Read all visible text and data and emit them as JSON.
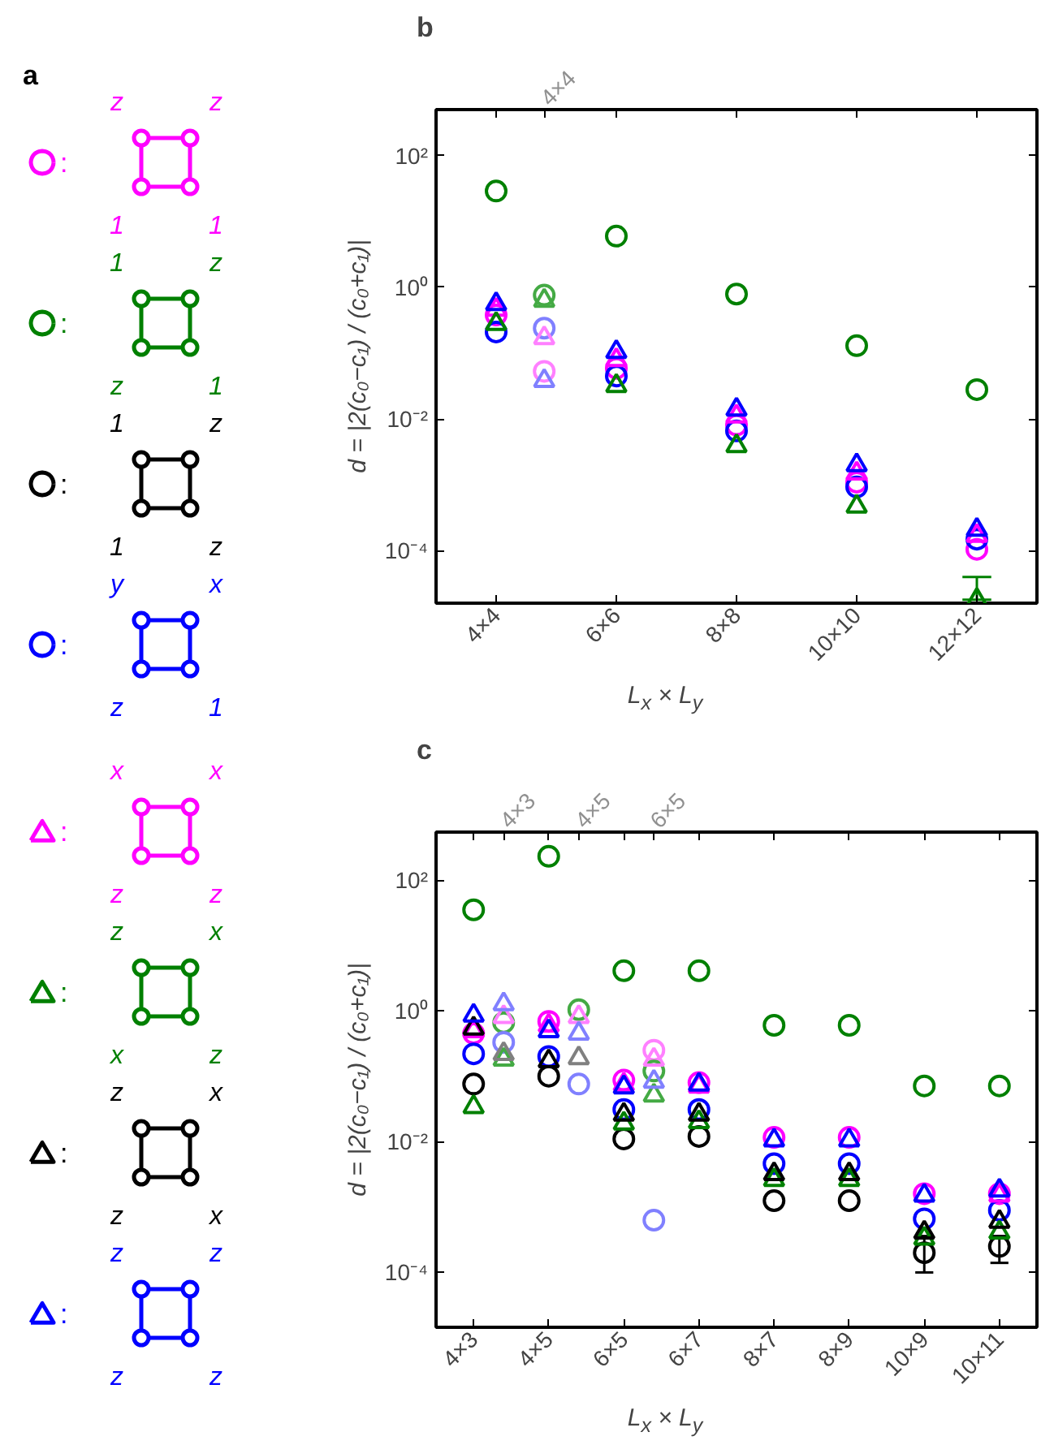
{
  "chart_data": [
    {
      "type": "other",
      "title": "a",
      "annotations": [
        ":",
        "z",
        "z",
        "1",
        "1",
        ":",
        "1",
        "z",
        "z",
        "1",
        ":",
        "1",
        "z",
        "1",
        "z",
        ":",
        "y",
        "x",
        "z",
        "1",
        ":",
        "x",
        "x",
        "z",
        "z",
        ":",
        "z",
        "x",
        "x",
        "z",
        ":",
        "z",
        "x",
        "z",
        "x",
        ":",
        "z",
        "z",
        "z",
        "z"
      ],
      "series": [
        {
          "color": "#ff00ff",
          "marker": "circle"
        },
        {
          "color": "#008000",
          "marker": "circle"
        },
        {
          "color": "#000000",
          "marker": "circle"
        },
        {
          "color": "#0000ff",
          "marker": "circle"
        },
        {
          "color": "#ff00ff",
          "marker": "triangle"
        },
        {
          "color": "#008000",
          "marker": "triangle"
        },
        {
          "color": "#000000",
          "marker": "triangle"
        },
        {
          "color": "#0000ff",
          "marker": "triangle"
        }
      ]
    },
    {
      "type": "scatter",
      "title": "b",
      "xlabel": "L$_{x}$ × L$_{y}$",
      "ylabel": "d = |2(c₀−c₁) / (c₀+c₁)|",
      "log": "y",
      "ylim": [
        1.6e-05,
        500
      ],
      "categories": [
        "4×4",
        null,
        null,
        null,
        null,
        "6×6",
        null,
        null,
        null,
        null,
        "8×8",
        null,
        null,
        null,
        null,
        "10×10",
        null,
        null,
        null,
        null,
        "12×12"
      ],
      "annotations": [
        "4×4"
      ],
      "yticks": [
        {
          "value": 0.0001,
          "label": "10⁻⁴"
        },
        {
          "value": 0.01,
          "label": "10⁻²"
        },
        {
          "value": 1,
          "label": "10⁰"
        },
        {
          "value": 100,
          "label": "10²"
        }
      ],
      "series": [
        {
          "color": "#ff00ff",
          "marker": "circle",
          "values": [
            0.38,
            null,
            null,
            null,
            null,
            0.059,
            null,
            null,
            null,
            null,
            0.0081,
            null,
            null,
            null,
            null,
            0.0011,
            null,
            null,
            null,
            null,
            0.000105
          ]
        },
        {
          "color": "#008000",
          "marker": "circle",
          "values": [
            29,
            null,
            null,
            null,
            null,
            6.0,
            null,
            null,
            null,
            null,
            0.79,
            null,
            null,
            null,
            null,
            0.13,
            null,
            null,
            null,
            null,
            0.028
          ]
        },
        {
          "color": "#0000ff",
          "marker": "circle",
          "values": [
            0.21,
            null,
            null,
            null,
            null,
            0.045,
            null,
            null,
            null,
            null,
            0.0066,
            null,
            null,
            null,
            null,
            0.00093,
            null,
            null,
            null,
            null,
            0.00015
          ]
        },
        {
          "color": "#ff00ff",
          "marker": "triangle",
          "values": [
            0.46,
            null,
            null,
            null,
            null,
            0.079,
            null,
            null,
            null,
            null,
            0.011,
            null,
            null,
            null,
            null,
            0.0015,
            null,
            null,
            null,
            null,
            0.00017
          ]
        },
        {
          "color": "#008000",
          "marker": "triangle",
          "values": [
            0.28,
            null,
            null,
            null,
            null,
            0.032,
            null,
            null,
            null,
            null,
            0.0039,
            null,
            null,
            null,
            null,
            0.00047,
            null,
            null,
            null,
            null,
            1.8e-05
          ],
          "errors": [
            null,
            null,
            null,
            null,
            null,
            null,
            null,
            null,
            null,
            null,
            null,
            null,
            null,
            null,
            null,
            null,
            null,
            null,
            null,
            null,
            [
              1.8e-05,
              4e-05
            ]
          ]
        },
        {
          "color": "#0000ff",
          "marker": "triangle",
          "values": [
            0.56,
            null,
            null,
            null,
            null,
            0.105,
            null,
            null,
            null,
            null,
            0.014,
            null,
            null,
            null,
            null,
            0.002,
            null,
            null,
            null,
            null,
            0.00021
          ]
        },
        {
          "color": "#ff80ff",
          "marker": "circle",
          "values": [
            null,
            null,
            0.053,
            null,
            null,
            null,
            null,
            null,
            null,
            null,
            null,
            null,
            null,
            null,
            null,
            null,
            null,
            null,
            null,
            null,
            null
          ]
        },
        {
          "color": "#44aa44",
          "marker": "circle",
          "values": [
            null,
            null,
            0.76,
            null,
            null,
            null,
            null,
            null,
            null,
            null,
            null,
            null,
            null,
            null,
            null,
            null,
            null,
            null,
            null,
            null,
            null
          ]
        },
        {
          "color": "#8080ff",
          "marker": "circle",
          "values": [
            null,
            null,
            0.24,
            null,
            null,
            null,
            null,
            null,
            null,
            null,
            null,
            null,
            null,
            null,
            null,
            null,
            null,
            null,
            null,
            null,
            null
          ]
        },
        {
          "color": "#ff80ff",
          "marker": "triangle",
          "values": [
            null,
            null,
            0.17,
            null,
            null,
            null,
            null,
            null,
            null,
            null,
            null,
            null,
            null,
            null,
            null,
            null,
            null,
            null,
            null,
            null,
            null
          ]
        },
        {
          "color": "#44aa44",
          "marker": "triangle",
          "values": [
            null,
            null,
            0.63,
            null,
            null,
            null,
            null,
            null,
            null,
            null,
            null,
            null,
            null,
            null,
            null,
            null,
            null,
            null,
            null,
            null,
            null
          ]
        },
        {
          "color": "#8080ff",
          "marker": "triangle",
          "values": [
            null,
            null,
            0.038,
            null,
            null,
            null,
            null,
            null,
            null,
            null,
            null,
            null,
            null,
            null,
            null,
            null,
            null,
            null,
            null,
            null,
            null
          ]
        }
      ]
    },
    {
      "type": "scatter",
      "title": "c",
      "xlabel": "L$_{x}$ × L$_{y}$",
      "ylabel": "d = |2(c₀−c₁) / (c₀+c₁)|",
      "log": "y",
      "ylim": [
        1.45e-05,
        540
      ],
      "categories": [
        "4×3",
        null,
        null,
        null,
        null,
        "4×5",
        null,
        null,
        null,
        null,
        "6×5",
        null,
        null,
        null,
        null,
        "6×7",
        null,
        null,
        null,
        null,
        "8×7",
        null,
        null,
        null,
        null,
        "8×9",
        null,
        null,
        null,
        null,
        "10×9",
        null,
        null,
        null,
        null,
        "10×11"
      ],
      "annotations": [
        "4×3",
        "4×5",
        "6×5"
      ],
      "yticks": [
        {
          "value": 0.0001,
          "label": "10⁻⁴"
        },
        {
          "value": 0.01,
          "label": "10⁻²"
        },
        {
          "value": 1,
          "label": "10⁰"
        },
        {
          "value": 100,
          "label": "10²"
        }
      ],
      "series": [
        {
          "color": "#ff00ff",
          "marker": "circle",
          "values": [
            0.45,
            null,
            null,
            null,
            null,
            0.69,
            null,
            null,
            null,
            null,
            0.087,
            null,
            null,
            null,
            null,
            0.08,
            null,
            null,
            null,
            null,
            0.0116,
            null,
            null,
            null,
            null,
            0.0116,
            null,
            null,
            null,
            null,
            0.0016,
            null,
            null,
            null,
            null,
            0.0016
          ]
        },
        {
          "color": "#008000",
          "marker": "circle",
          "values": [
            35,
            null,
            null,
            null,
            null,
            230,
            null,
            null,
            null,
            null,
            4.1,
            null,
            null,
            null,
            null,
            4.1,
            null,
            null,
            null,
            null,
            0.6,
            null,
            null,
            null,
            null,
            0.6,
            null,
            null,
            null,
            null,
            0.071,
            null,
            null,
            null,
            null,
            0.071
          ]
        },
        {
          "color": "#000000",
          "marker": "circle",
          "values": [
            0.076,
            null,
            null,
            null,
            null,
            0.1,
            null,
            null,
            null,
            null,
            0.011,
            null,
            null,
            null,
            null,
            0.012,
            null,
            null,
            null,
            null,
            0.00125,
            null,
            null,
            null,
            null,
            0.00125,
            null,
            null,
            null,
            null,
            0.0002,
            null,
            null,
            null,
            null,
            0.00025
          ],
          "errors": [
            null,
            null,
            null,
            null,
            null,
            null,
            null,
            null,
            null,
            null,
            null,
            null,
            null,
            null,
            null,
            null,
            null,
            null,
            null,
            null,
            null,
            null,
            null,
            null,
            null,
            null,
            null,
            null,
            null,
            null,
            [
              0.0001,
              0.00036
            ],
            null,
            null,
            null,
            null,
            [
              0.00014,
              0.00036
            ]
          ]
        },
        {
          "color": "#0000ff",
          "marker": "circle",
          "values": [
            0.22,
            null,
            null,
            null,
            null,
            0.2,
            null,
            null,
            null,
            null,
            0.031,
            null,
            null,
            null,
            null,
            0.031,
            null,
            null,
            null,
            null,
            0.0046,
            null,
            null,
            null,
            null,
            0.0046,
            null,
            null,
            null,
            null,
            0.00066,
            null,
            null,
            null,
            null,
            0.00089
          ]
        },
        {
          "color": "#ff00ff",
          "marker": "triangle",
          "values": [
            0.49,
            null,
            null,
            null,
            null,
            0.6,
            null,
            null,
            null,
            null,
            0.075,
            null,
            null,
            null,
            null,
            0.07,
            null,
            null,
            null,
            null,
            null,
            null,
            null,
            null,
            null,
            null,
            null,
            null,
            null,
            null,
            null,
            null,
            null,
            null,
            null,
            0.0015
          ]
        },
        {
          "color": "#008000",
          "marker": "triangle",
          "values": [
            0.034,
            null,
            null,
            null,
            null,
            null,
            null,
            null,
            null,
            null,
            0.019,
            null,
            null,
            null,
            null,
            0.02,
            null,
            null,
            null,
            null,
            0.0026,
            null,
            null,
            null,
            null,
            0.0026,
            null,
            null,
            null,
            null,
            0.00033,
            null,
            null,
            null,
            null,
            0.00041
          ]
        },
        {
          "color": "#000000",
          "marker": "triangle",
          "values": [
            0.54,
            null,
            null,
            null,
            null,
            0.17,
            null,
            null,
            null,
            null,
            0.026,
            null,
            null,
            null,
            null,
            0.026,
            null,
            null,
            null,
            null,
            0.0032,
            null,
            null,
            null,
            null,
            0.0032,
            null,
            null,
            null,
            null,
            0.00041,
            null,
            null,
            null,
            null,
            0.0006
          ]
        },
        {
          "color": "#0000ff",
          "marker": "triangle",
          "values": [
            0.85,
            null,
            null,
            null,
            null,
            0.49,
            null,
            null,
            null,
            null,
            0.068,
            null,
            null,
            null,
            null,
            0.075,
            null,
            null,
            null,
            null,
            0.0105,
            null,
            null,
            null,
            null,
            0.0105,
            null,
            null,
            null,
            null,
            0.0015,
            null,
            null,
            null,
            null,
            0.0018
          ]
        },
        {
          "color": "#ff80ff",
          "marker": "circle",
          "values": [
            null,
            null,
            null,
            null,
            null,
            null,
            null,
            null,
            null,
            null,
            null,
            null,
            0.25,
            null,
            null,
            null,
            null,
            null,
            null,
            null,
            null,
            null,
            null,
            null,
            null,
            null,
            null,
            null,
            null,
            null,
            null,
            null,
            null,
            null,
            null,
            null
          ]
        },
        {
          "color": "#44aa44",
          "marker": "circle",
          "values": [
            null,
            null,
            0.66,
            null,
            null,
            null,
            null,
            1.04,
            null,
            null,
            null,
            null,
            0.12,
            null,
            null,
            null,
            null,
            null,
            null,
            null,
            null,
            null,
            null,
            null,
            null,
            null,
            null,
            null,
            null,
            null,
            null,
            null,
            null,
            null,
            null,
            null
          ]
        },
        {
          "color": "#8080ff",
          "marker": "circle",
          "values": [
            null,
            null,
            0.33,
            null,
            null,
            null,
            null,
            0.076,
            null,
            null,
            null,
            null,
            0.00063,
            null,
            null,
            null,
            null,
            null,
            null,
            null,
            null,
            null,
            null,
            null,
            null,
            null,
            null,
            null,
            null,
            null,
            null,
            null,
            null,
            null,
            null,
            null
          ]
        },
        {
          "color": "#ff80ff",
          "marker": "triangle",
          "values": [
            null,
            null,
            0.81,
            null,
            null,
            null,
            null,
            0.81,
            null,
            null,
            null,
            null,
            0.18,
            null,
            null,
            null,
            null,
            null,
            null,
            null,
            null,
            null,
            null,
            null,
            null,
            null,
            null,
            null,
            null,
            null,
            null,
            null,
            null,
            null,
            null,
            null
          ]
        },
        {
          "color": "#44aa44",
          "marker": "triangle",
          "values": [
            null,
            null,
            0.18,
            null,
            null,
            null,
            null,
            null,
            null,
            null,
            null,
            null,
            0.051,
            null,
            null,
            null,
            null,
            null,
            null,
            null,
            null,
            null,
            null,
            null,
            null,
            null,
            null,
            null,
            null,
            null,
            null,
            null,
            null,
            null,
            null,
            null
          ]
        },
        {
          "color": "#808080",
          "marker": "triangle",
          "values": [
            null,
            null,
            0.22,
            null,
            null,
            null,
            null,
            0.19,
            null,
            null,
            null,
            null,
            null,
            null,
            null,
            null,
            null,
            null,
            null,
            null,
            null,
            null,
            null,
            null,
            null,
            null,
            null,
            null,
            null,
            null,
            null,
            null,
            null,
            null,
            null,
            null
          ]
        },
        {
          "color": "#8080ff",
          "marker": "triangle",
          "values": [
            null,
            null,
            1.27,
            null,
            null,
            null,
            null,
            0.45,
            null,
            null,
            null,
            null,
            0.083,
            null,
            null,
            null,
            null,
            null,
            null,
            null,
            null,
            null,
            null,
            null,
            null,
            null,
            null,
            null,
            null,
            null,
            null,
            null,
            null,
            null,
            null,
            null
          ]
        }
      ]
    }
  ]
}
